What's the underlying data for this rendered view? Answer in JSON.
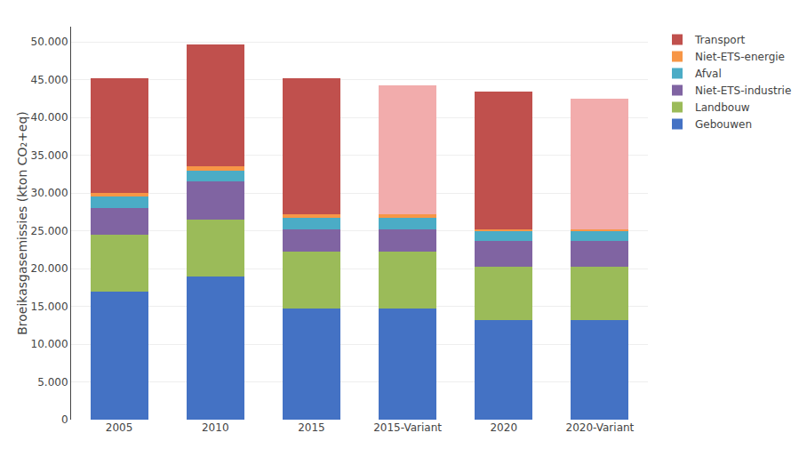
{
  "chart_data": {
    "type": "bar",
    "stacked": true,
    "categories": [
      "2005",
      "2010",
      "2015",
      "2015-Variant",
      "2020",
      "2020-Variant"
    ],
    "series": [
      {
        "name": "Gebouwen",
        "color": "#4472C4",
        "values": [
          17000,
          19000,
          14700,
          14700,
          13200,
          13200
        ]
      },
      {
        "name": "Landbouw",
        "color": "#9BBB59",
        "values": [
          7500,
          7500,
          7500,
          7500,
          7000,
          7000
        ]
      },
      {
        "name": "Niet-ETS-industrie",
        "color": "#8064A2",
        "values": [
          3500,
          5000,
          3000,
          3000,
          3500,
          3500
        ]
      },
      {
        "name": "Afval",
        "color": "#4BACC6",
        "values": [
          1500,
          1500,
          1500,
          1500,
          1200,
          1200
        ]
      },
      {
        "name": "Niet-ETS-energie",
        "color": "#F79646",
        "values": [
          500,
          500,
          500,
          500,
          300,
          300
        ]
      },
      {
        "name": "Transport",
        "colors": [
          "#C0504D",
          "#C0504D",
          "#C0504D",
          "#F2ACAC",
          "#C0504D",
          "#F2ACAC"
        ],
        "values": [
          15200,
          16200,
          18000,
          17000,
          18200,
          17300
        ]
      }
    ],
    "ylabel": "Broeikasgasemissies (kton CO₂+eq)",
    "ylim": [
      0,
      52000
    ],
    "yticks": [
      0,
      {
        "value": 5000,
        "label": "5.000"
      },
      {
        "value": 10000,
        "label": "10.000"
      },
      {
        "value": 15000,
        "label": "15.000"
      },
      {
        "value": 20000,
        "label": "20.000"
      },
      {
        "value": 25000,
        "label": "25.000"
      },
      {
        "value": 30000,
        "label": "30.000"
      },
      {
        "value": 35000,
        "label": "35.000"
      },
      {
        "value": 40000,
        "label": "40.000"
      },
      {
        "value": 45000,
        "label": "45.000"
      },
      {
        "value": 50000,
        "label": "50.000"
      }
    ],
    "grid": true,
    "legend": "upper right"
  }
}
